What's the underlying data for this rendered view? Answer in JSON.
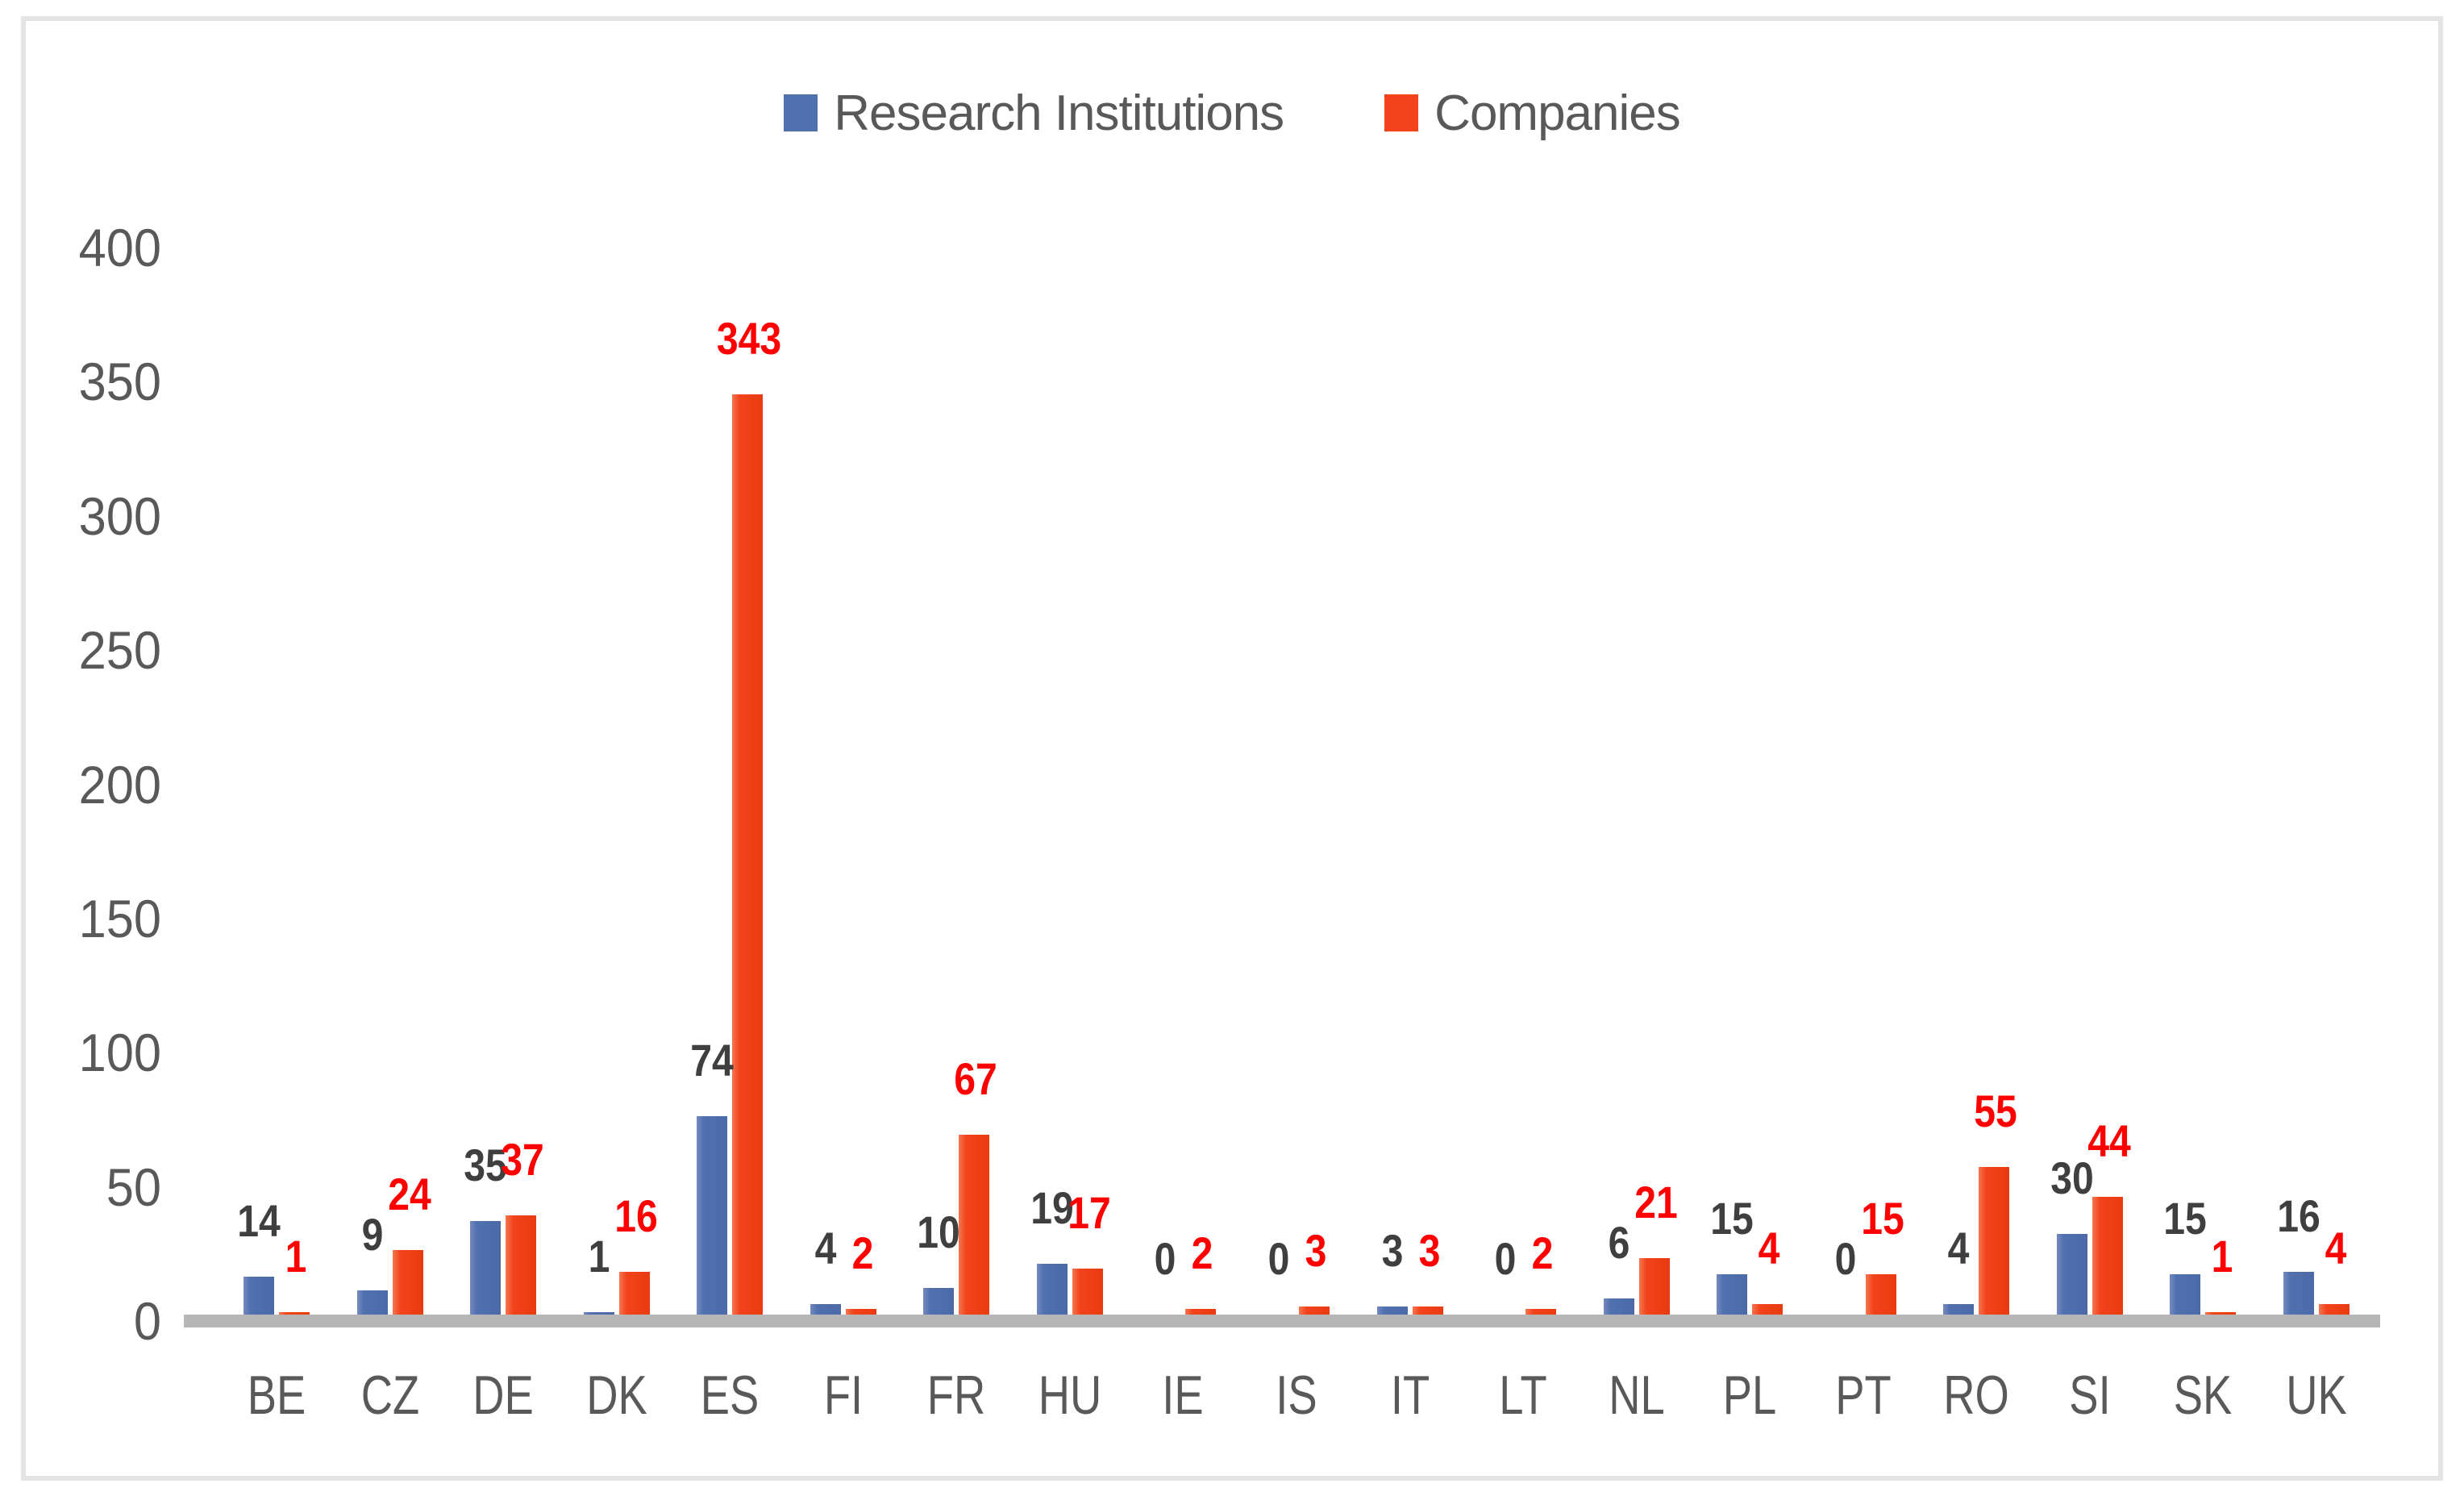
{
  "chart_data": {
    "type": "bar",
    "title": "",
    "xlabel": "",
    "ylabel": "",
    "categories": [
      "BE",
      "CZ",
      "DE",
      "DK",
      "ES",
      "FI",
      "FR",
      "HU",
      "IE",
      "IS",
      "IT",
      "LT",
      "NL",
      "PL",
      "PT",
      "RO",
      "SI",
      "SK",
      "UK"
    ],
    "series": [
      {
        "name": "Research Institutions",
        "color": "#5170af",
        "label_color": "#3f3f3f",
        "values": [
          14,
          9,
          35,
          1,
          74,
          4,
          10,
          19,
          0,
          0,
          3,
          0,
          6,
          15,
          0,
          4,
          30,
          15,
          16
        ]
      },
      {
        "name": "Companies",
        "color": "#f2431c",
        "label_color": "#fe0000",
        "values": [
          1,
          24,
          37,
          16,
          343,
          2,
          67,
          17,
          2,
          3,
          3,
          2,
          21,
          4,
          15,
          55,
          44,
          1,
          4
        ]
      }
    ],
    "yticks": [
      0,
      50,
      100,
      150,
      200,
      250,
      300,
      350,
      400
    ],
    "ylim": [
      0,
      400
    ],
    "grid": false,
    "legend_position": "top",
    "data_labels": true,
    "axis_text_color": "#595959",
    "baseline_color": "#b6b6b6",
    "frame_color": "#e4e4e4"
  }
}
